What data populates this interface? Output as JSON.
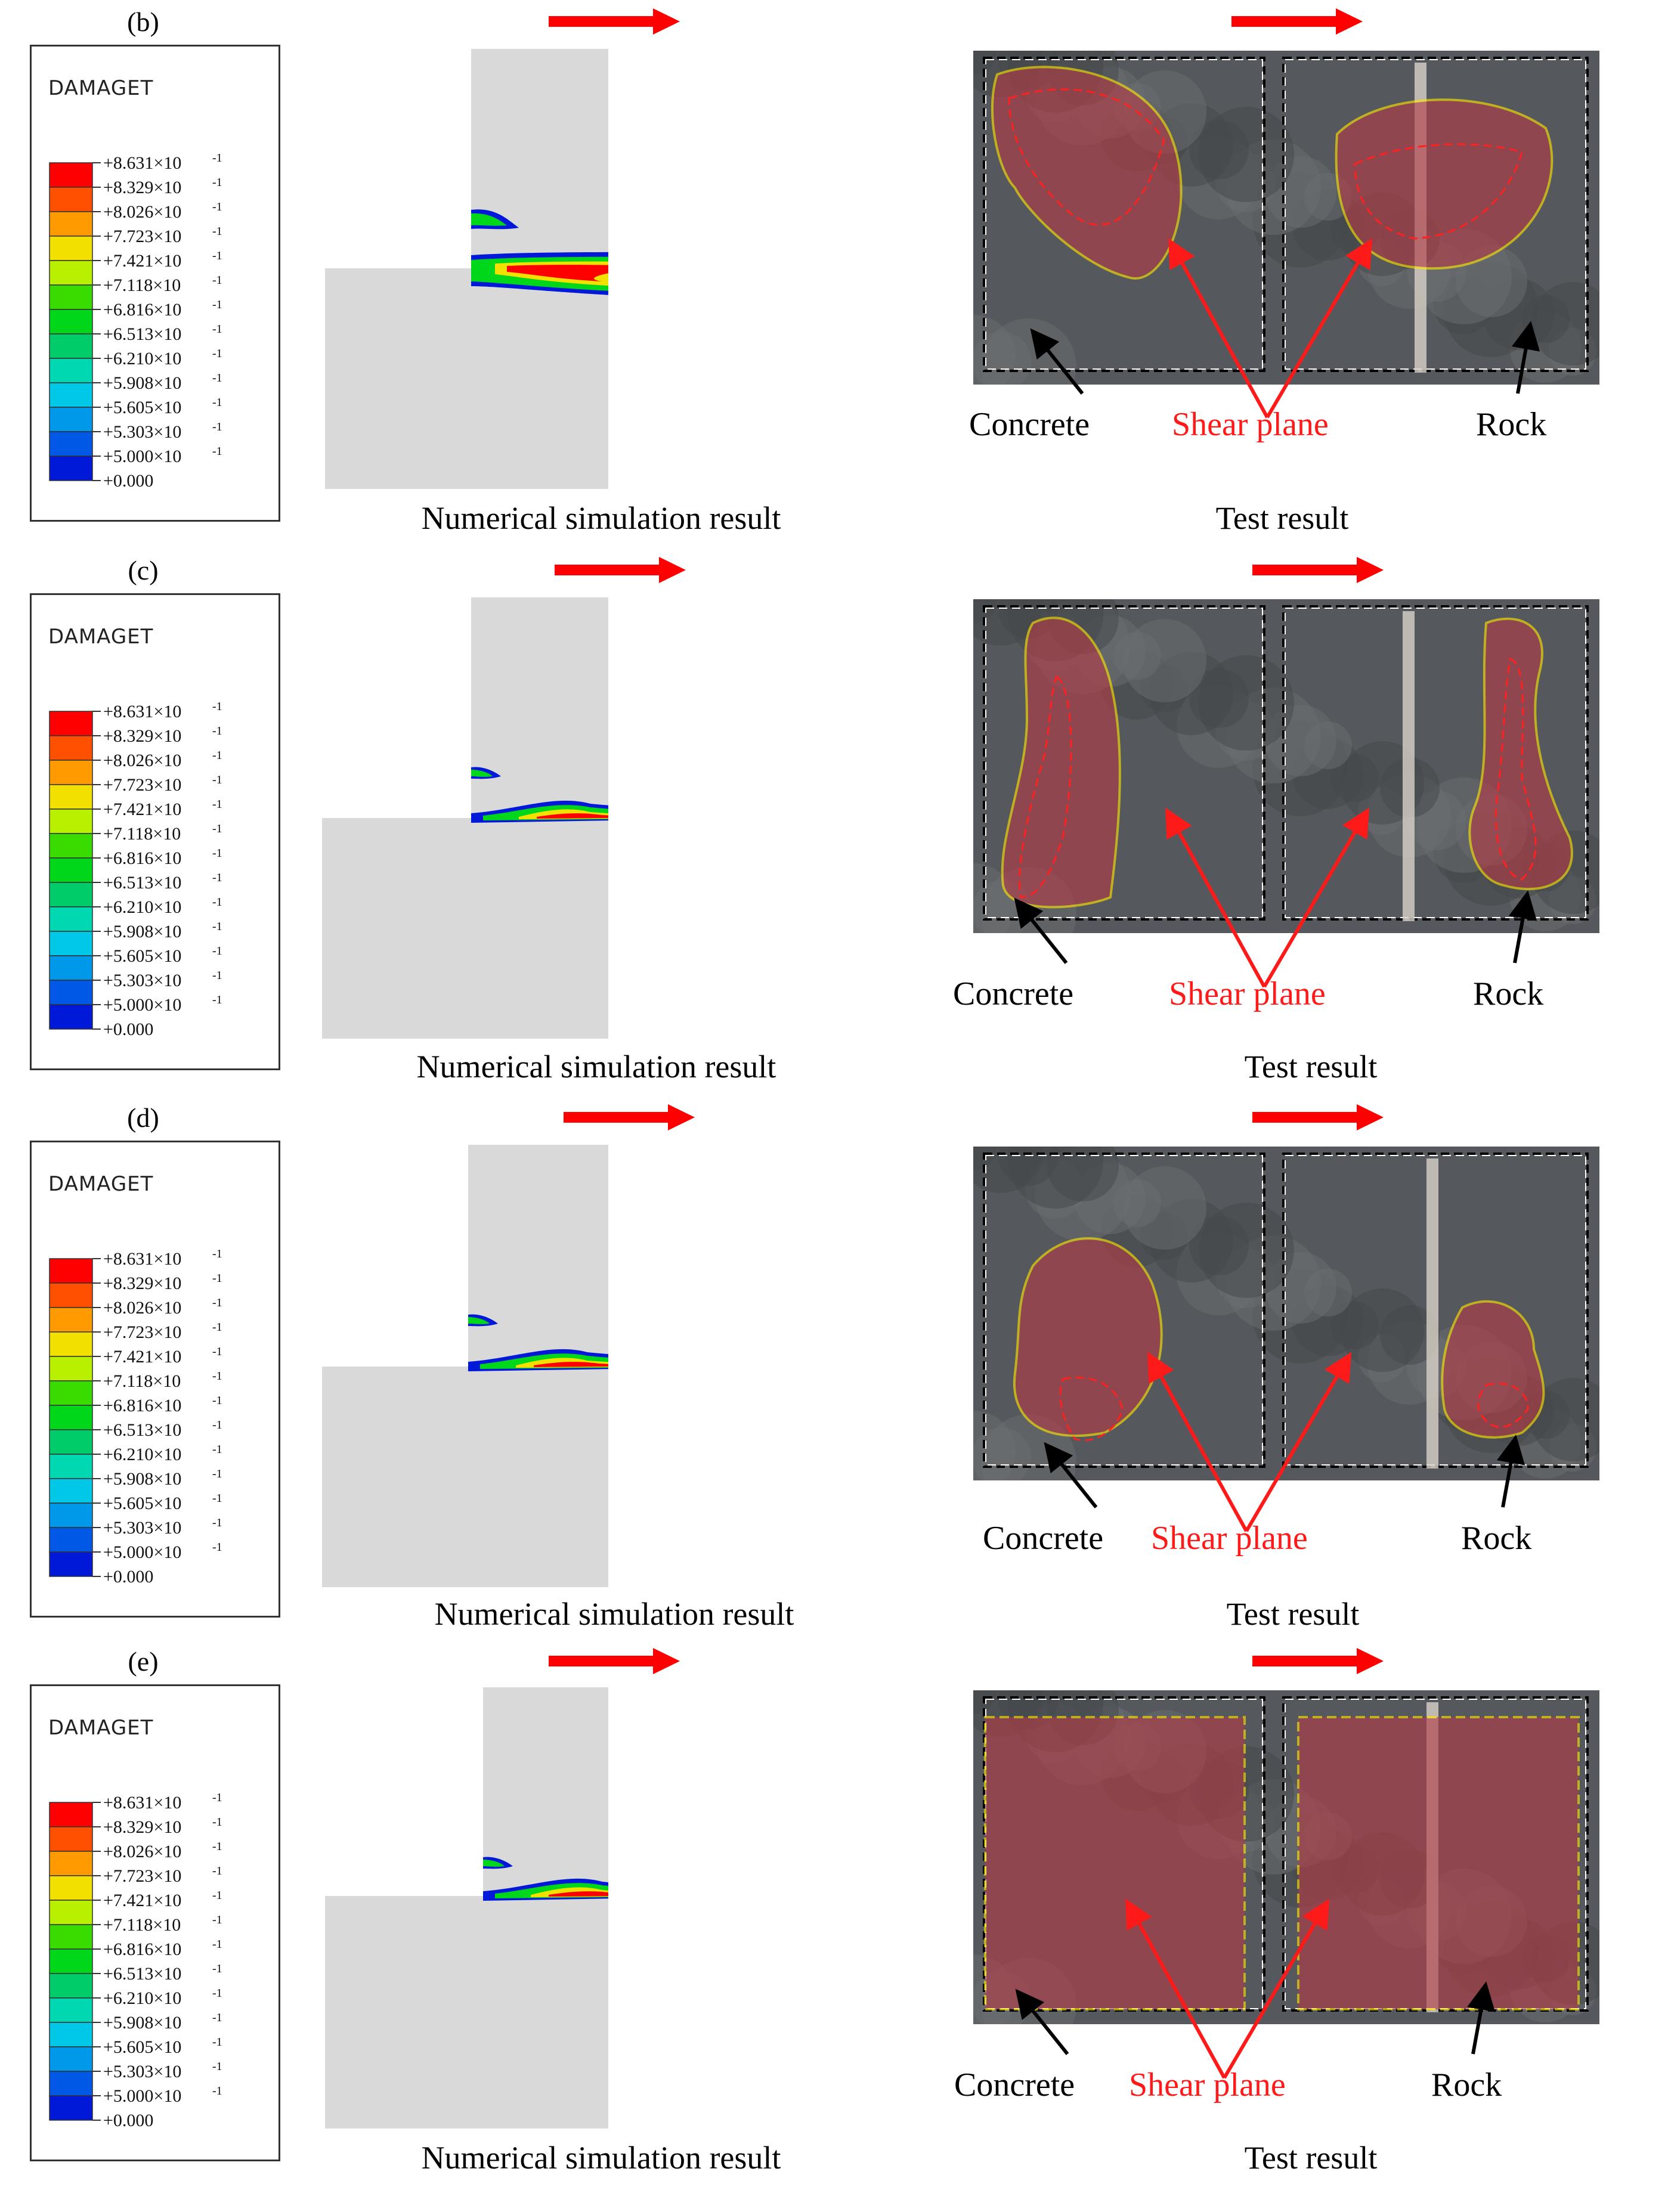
{
  "legend": {
    "title": "DAMAGET",
    "values": [
      "+8.631×10",
      "+8.329×10",
      "+8.026×10",
      "+7.723×10",
      "+7.421×10",
      "+7.118×10",
      "+6.816×10",
      "+6.513×10",
      "+6.210×10",
      "+5.908×10",
      "+5.605×10",
      "+5.303×10",
      "+5.000×10",
      "+0.000"
    ],
    "exponent": "-1",
    "colors": [
      "#ff0000",
      "#ff5000",
      "#ff9a00",
      "#f2e000",
      "#b8f000",
      "#3adc00",
      "#00d61a",
      "#00cc6a",
      "#00d8b2",
      "#00c8e6",
      "#0098e8",
      "#0058e6",
      "#0018d8",
      "#ffffff"
    ]
  },
  "panels": [
    {
      "label": "(b)",
      "sim_caption": "Numerical simulation result",
      "test_caption": "Test result",
      "concrete": "Concrete",
      "shear": "Shear plane",
      "rock": "Rock"
    },
    {
      "label": "(c)",
      "sim_caption": "Numerical simulation result",
      "test_caption": "Test result",
      "concrete": "Concrete",
      "shear": "Shear plane",
      "rock": "Rock"
    },
    {
      "label": "(d)",
      "sim_caption": "Numerical simulation result",
      "test_caption": "Test result",
      "concrete": "Concrete",
      "shear": "Shear plane",
      "rock": "Rock"
    },
    {
      "label": "(e)",
      "sim_caption": "Numerical simulation result",
      "test_caption": "Test result",
      "concrete": "Concrete",
      "shear": "Shear plane",
      "rock": "Rock"
    }
  ]
}
